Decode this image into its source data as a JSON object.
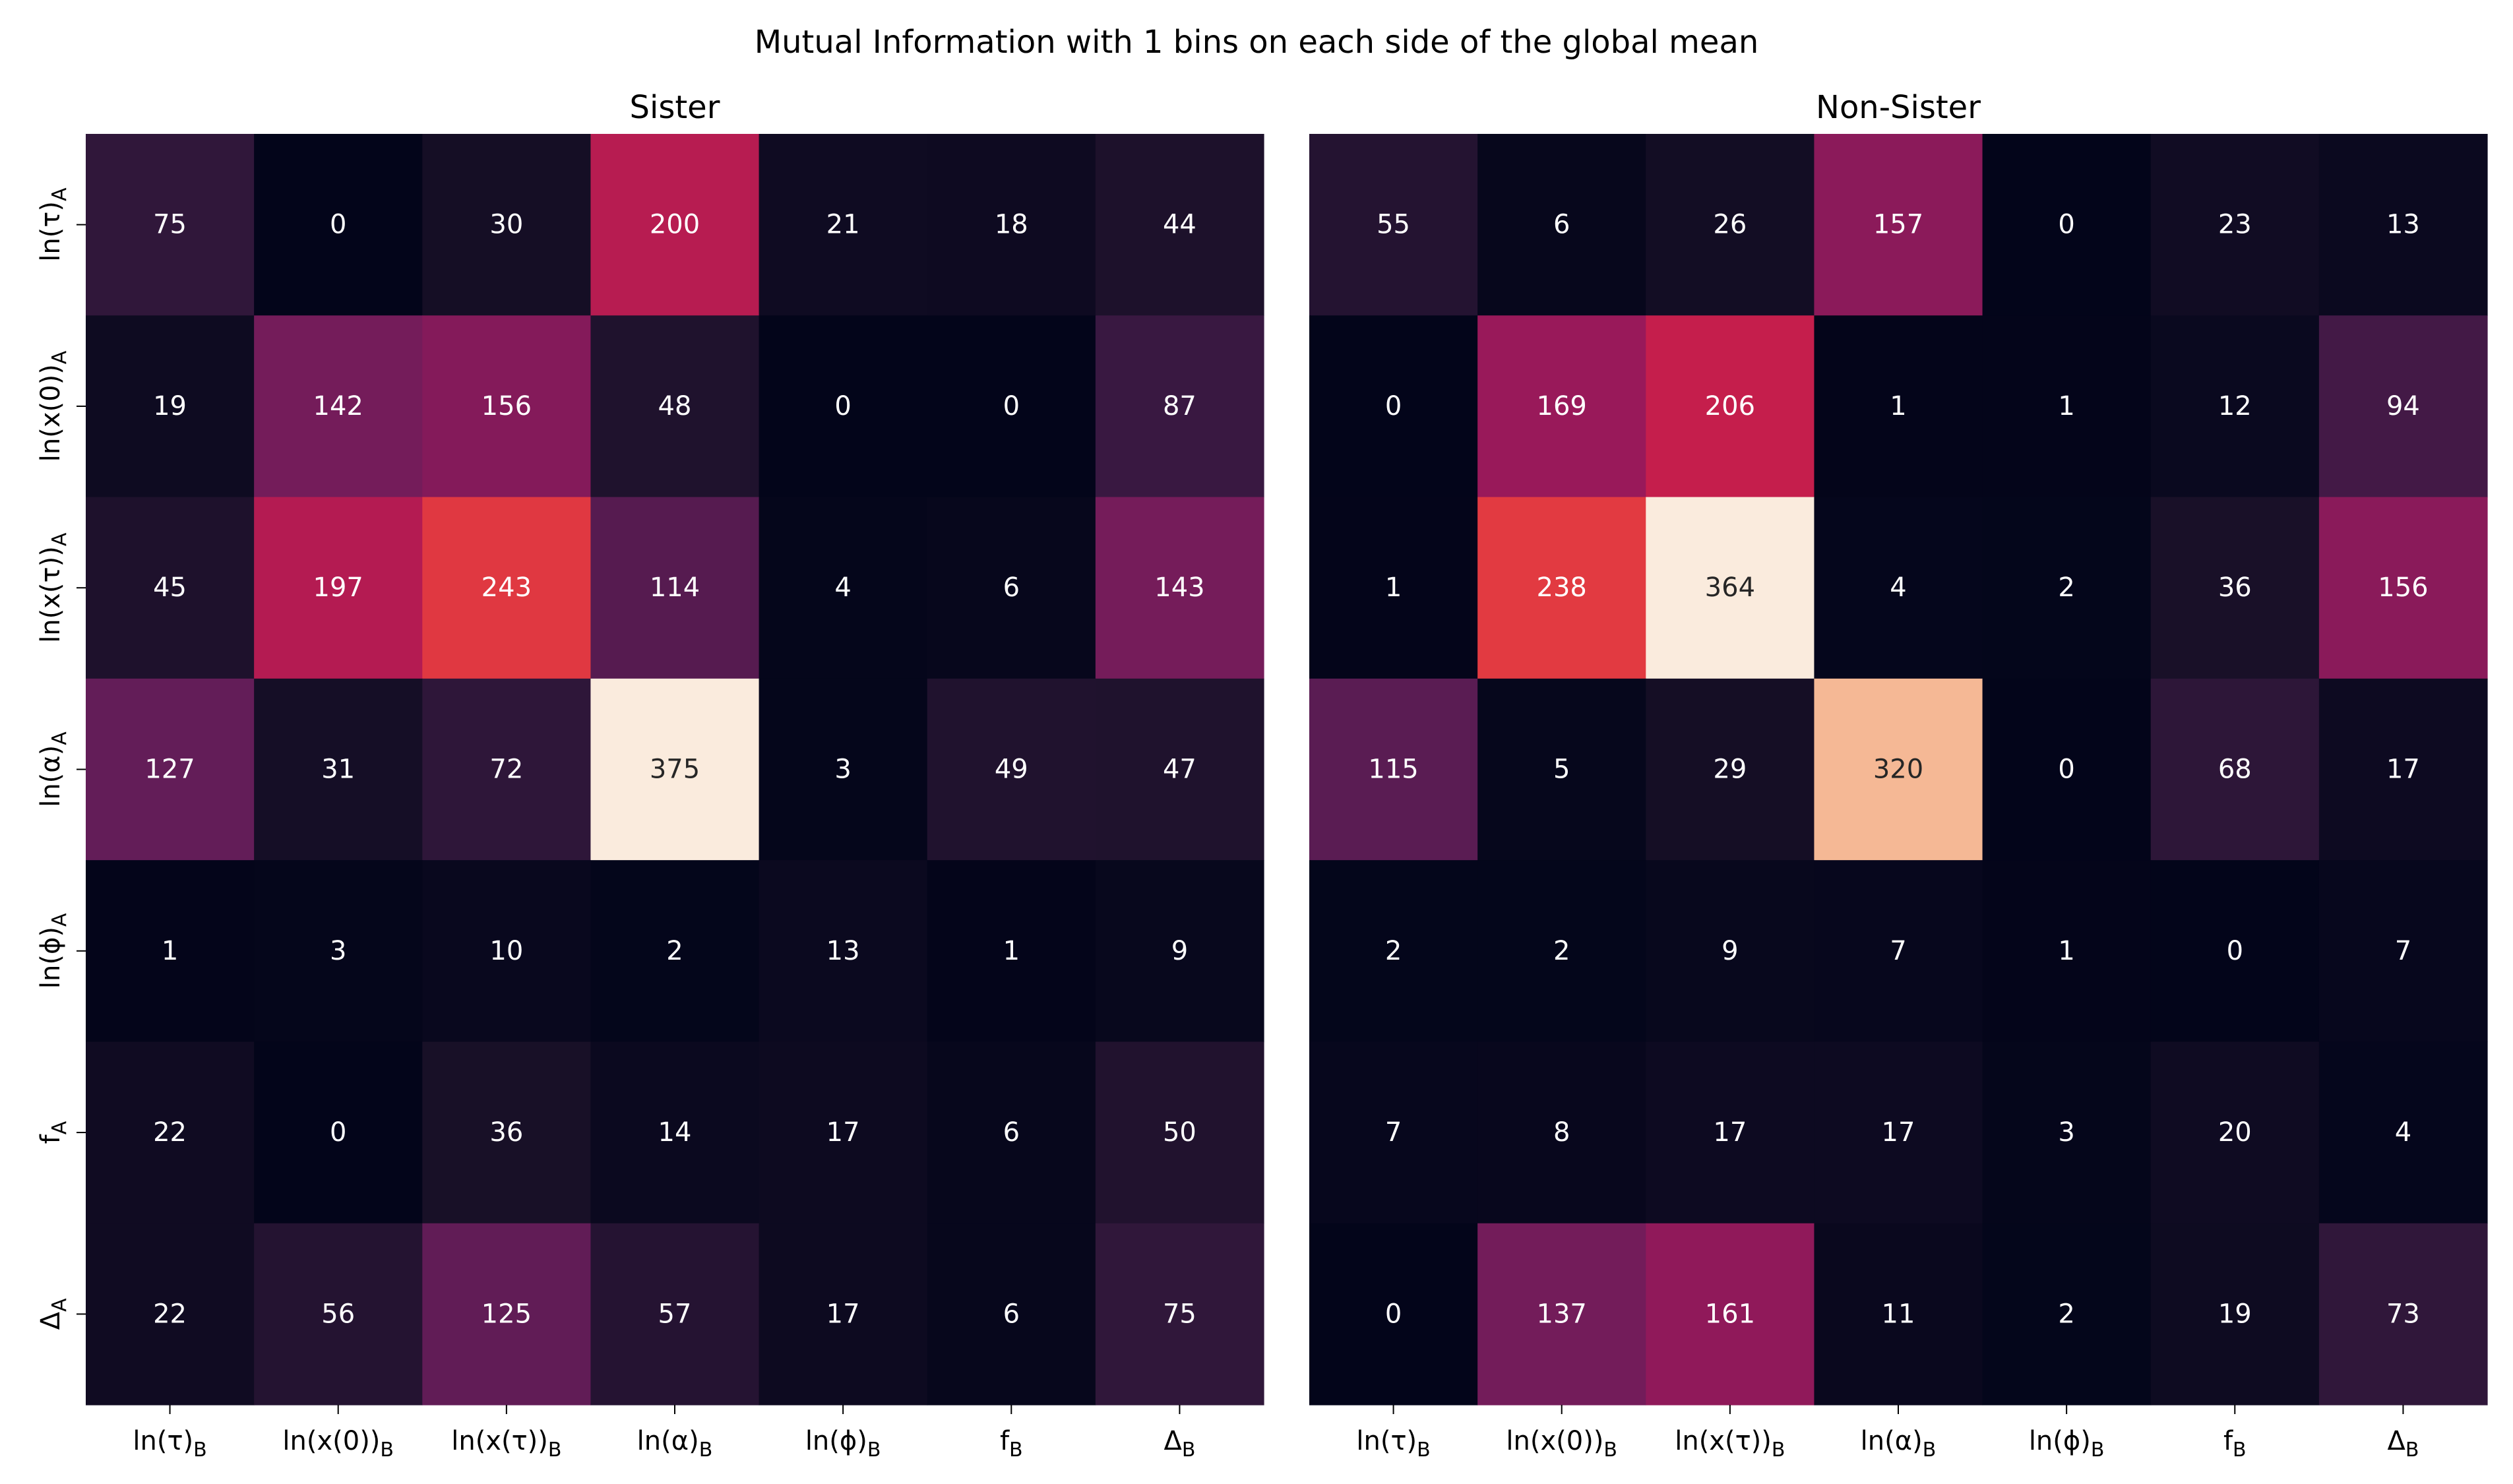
{
  "title": "Mutual Information with 1 bins on each side of the global mean",
  "chart_data": [
    {
      "type": "heatmap",
      "title": "Sister",
      "x_labels": [
        "ln(τ)",
        "ln(x(0))",
        "ln(x(τ))",
        "ln(α)",
        "ln(ϕ)",
        "f",
        "Δ"
      ],
      "x_subscript": "B",
      "y_labels": [
        "ln(τ)",
        "ln(x(0))",
        "ln(x(τ))",
        "ln(α)",
        "ln(ϕ)",
        "f",
        "Δ"
      ],
      "y_subscript": "A",
      "values": [
        [
          75,
          0,
          30,
          200,
          21,
          18,
          44
        ],
        [
          19,
          142,
          156,
          48,
          0,
          0,
          87
        ],
        [
          45,
          197,
          243,
          114,
          4,
          6,
          143
        ],
        [
          127,
          31,
          72,
          375,
          3,
          49,
          47
        ],
        [
          1,
          3,
          10,
          2,
          13,
          1,
          9
        ],
        [
          22,
          0,
          36,
          14,
          17,
          6,
          50
        ],
        [
          22,
          56,
          125,
          57,
          17,
          6,
          75
        ]
      ],
      "colormap": "rocket",
      "annotated": true,
      "colorbar": false
    },
    {
      "type": "heatmap",
      "title": "Non-Sister",
      "x_labels": [
        "ln(τ)",
        "ln(x(0))",
        "ln(x(τ))",
        "ln(α)",
        "ln(ϕ)",
        "f",
        "Δ"
      ],
      "x_subscript": "B",
      "y_labels": [
        "ln(τ)",
        "ln(x(0))",
        "ln(x(τ))",
        "ln(α)",
        "ln(ϕ)",
        "f",
        "Δ"
      ],
      "y_subscript": "A",
      "values": [
        [
          55,
          6,
          26,
          157,
          0,
          23,
          13
        ],
        [
          0,
          169,
          206,
          1,
          1,
          12,
          94
        ],
        [
          1,
          238,
          364,
          4,
          2,
          36,
          156
        ],
        [
          115,
          5,
          29,
          320,
          0,
          68,
          17
        ],
        [
          2,
          2,
          9,
          7,
          1,
          0,
          7
        ],
        [
          7,
          8,
          17,
          17,
          3,
          20,
          4
        ],
        [
          0,
          137,
          161,
          11,
          2,
          19,
          73
        ]
      ],
      "colormap": "rocket",
      "annotated": true,
      "colorbar": false
    }
  ]
}
